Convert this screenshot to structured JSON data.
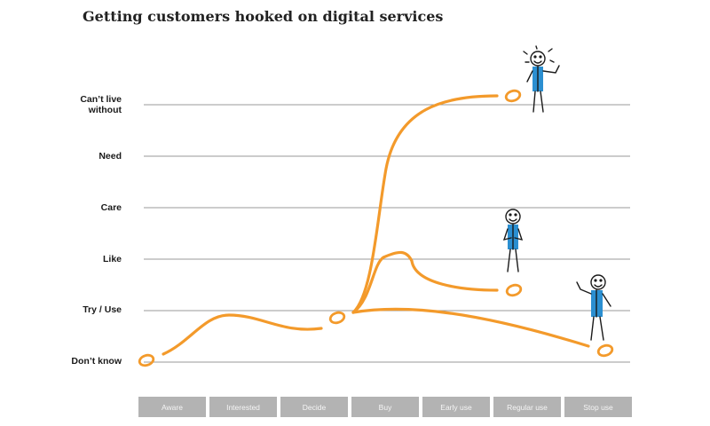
{
  "title": "Getting customers hooked on digital services",
  "levels": [
    {
      "key": "cant_live",
      "label": "Can’t live\nwithout"
    },
    {
      "key": "need",
      "label": "Need"
    },
    {
      "key": "care",
      "label": "Care"
    },
    {
      "key": "like",
      "label": "Like"
    },
    {
      "key": "try",
      "label": "Try / Use"
    },
    {
      "key": "dont_know",
      "label": "Don’t know"
    }
  ],
  "stages": [
    "Aware",
    "Interested",
    "Decide",
    "Buy",
    "Early use",
    "Regular use",
    "Stop use"
  ],
  "colors": {
    "curve": "#f39a2b",
    "gridline": "#999999",
    "stage_box": "#b3b3b3",
    "figure_shirt": "#2b8fd1"
  },
  "figures": [
    {
      "name": "ecstatic-figure",
      "level": "Can’t live without"
    },
    {
      "name": "pleased-figure",
      "level": "Like"
    },
    {
      "name": "waving-figure",
      "level": "Try / Use"
    }
  ]
}
